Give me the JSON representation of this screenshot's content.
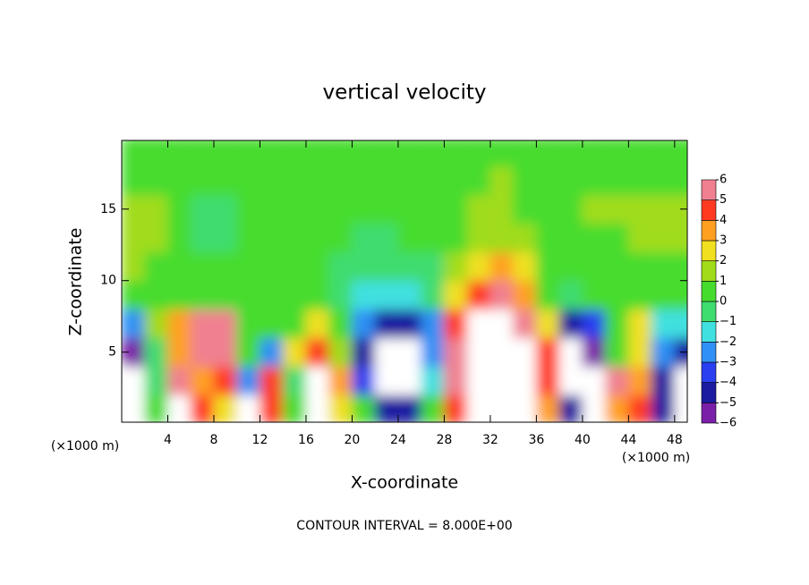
{
  "chart_data": {
    "type": "heatmap",
    "title": "vertical velocity",
    "x_label": "X-coordinate",
    "y_label": "Z-coordinate",
    "x_unit": "(×1000 m)",
    "y_unit": "(×1000 m)",
    "note": "CONTOUR INTERVAL = 8.000E+00",
    "xlim": [
      0,
      49.1
    ],
    "ylim": [
      0.1,
      19.8
    ],
    "xticks": [
      4,
      8,
      12,
      16,
      20,
      24,
      28,
      32,
      36,
      40,
      44,
      48
    ],
    "yticks": [
      5,
      10,
      15
    ],
    "x": [
      1,
      3,
      5,
      7,
      9,
      11,
      13,
      15,
      17,
      19,
      21,
      23,
      25,
      27,
      29,
      31,
      33,
      35,
      37,
      39,
      41,
      43,
      45,
      47,
      49
    ],
    "y": [
      1,
      3,
      5,
      7,
      9,
      11,
      13,
      15,
      17,
      19
    ],
    "z": [
      [
        -8,
        0,
        8,
        4,
        2,
        -8,
        4,
        0,
        8,
        2,
        0,
        -5,
        -5,
        0,
        4,
        8,
        8,
        8,
        3,
        -5,
        -8,
        3,
        4,
        -5,
        -8
      ],
      [
        -8,
        -1,
        5,
        3,
        4,
        -3,
        4,
        -1,
        8,
        3,
        -4,
        -8,
        -8,
        -2,
        5,
        8,
        8,
        8,
        4,
        -8,
        -8,
        5,
        3,
        -5,
        -8
      ],
      [
        -6,
        -1,
        3,
        5,
        6,
        0,
        -3,
        2,
        4,
        1,
        -5,
        -8,
        -8,
        -3,
        5,
        8,
        8,
        8,
        4,
        -8,
        -6,
        0,
        2,
        -3,
        -5
      ],
      [
        -3,
        1,
        3,
        5,
        5,
        0,
        0,
        0,
        2,
        0,
        -3,
        -5,
        -5,
        -3,
        4,
        8,
        7,
        5,
        2,
        -5,
        -4,
        0,
        2,
        -2,
        -2
      ],
      [
        0.5,
        0.5,
        0,
        0,
        0,
        0,
        0,
        0,
        0,
        -1,
        -2,
        -2,
        -2,
        -1,
        2,
        4,
        5,
        3,
        0.5,
        -1,
        0,
        0.5,
        0.5,
        0,
        0
      ],
      [
        1,
        0.5,
        0.5,
        0,
        0,
        0,
        0,
        0,
        0,
        -0.5,
        -1,
        -1,
        -1,
        -1,
        1,
        2,
        3,
        2,
        0.5,
        0,
        0,
        0.5,
        0.5,
        0.5,
        0.5
      ],
      [
        1,
        1,
        0,
        -0.5,
        -1,
        0,
        0,
        0,
        0,
        0,
        -0.5,
        -0.5,
        0,
        0,
        0.5,
        1,
        1.5,
        1,
        0.5,
        0.5,
        0.5,
        0.5,
        1,
        1,
        1
      ],
      [
        1,
        1.5,
        0.5,
        -0.5,
        -1,
        0,
        0,
        0,
        0,
        0,
        0,
        0,
        0,
        0,
        0.5,
        1,
        1,
        0.5,
        0,
        0.5,
        1,
        1,
        1,
        1,
        1
      ],
      [
        0.5,
        0.5,
        0.5,
        0,
        0,
        0,
        0,
        0,
        0,
        0,
        0,
        0,
        0,
        0,
        0.5,
        0.5,
        1,
        0.5,
        0,
        0,
        0.5,
        0.5,
        0.5,
        0.5,
        0.5
      ],
      [
        0.5,
        0.5,
        0,
        0,
        0,
        0,
        0,
        0,
        0,
        0,
        0,
        0,
        0,
        0,
        0.5,
        0.5,
        0.5,
        0.5,
        0,
        0,
        0,
        0.5,
        0.5,
        0.5,
        0.5
      ]
    ],
    "colorbar_ticks": [
      {
        "value": -6,
        "label": "−6"
      },
      {
        "value": -5,
        "label": "−5"
      },
      {
        "value": -4,
        "label": "−4"
      },
      {
        "value": -3,
        "label": "−3"
      },
      {
        "value": -2,
        "label": "−2"
      },
      {
        "value": -1,
        "label": "−1"
      },
      0,
      1,
      2,
      3,
      4,
      5,
      6
    ],
    "colors": [
      "#7a1fa8",
      "#1c1ca0",
      "#2a40f0",
      "#2f90f5",
      "#40e0e0",
      "#3fdc70",
      "#46dc2e",
      "#a0dc1a",
      "#f0e020",
      "#ffa020",
      "#ff3a20",
      "#f08090"
    ],
    "out_of_range_color": "#ffffff"
  }
}
